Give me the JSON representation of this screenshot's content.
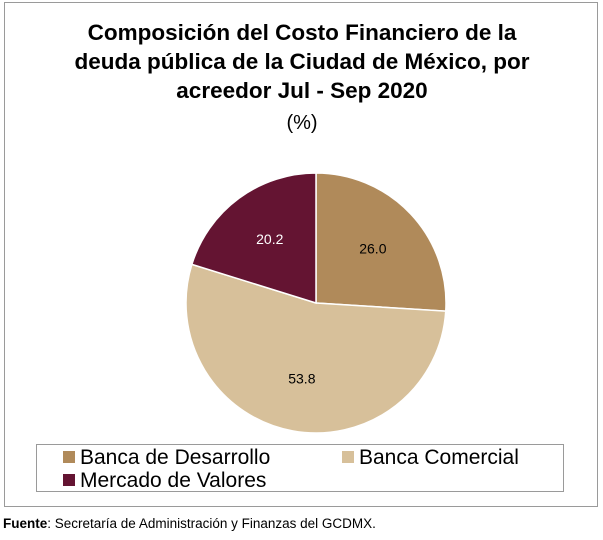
{
  "chart_data": {
    "type": "pie",
    "title_lines": [
      "Composición del Costo Financiero de la",
      "deuda pública  de la Ciudad de México, por",
      "acreedor Jul - Sep 2020"
    ],
    "subtitle": "(%)",
    "slices": [
      {
        "name": "Banca de Desarrollo",
        "value": 26.0,
        "label": "26.0",
        "color": "#B08A5A",
        "label_color": "#000000"
      },
      {
        "name": "Banca Comercial",
        "value": 53.8,
        "label": "53.8",
        "color": "#D7C09A",
        "label_color": "#000000"
      },
      {
        "name": "Mercado de Valores",
        "value": 20.2,
        "label": "20.2",
        "color": "#641432",
        "label_color": "#ffffff"
      }
    ],
    "legend_position": "bottom"
  },
  "source": {
    "label": "Fuente",
    "text": ": Secretaría de Administración y Finanzas del GCDMX."
  }
}
